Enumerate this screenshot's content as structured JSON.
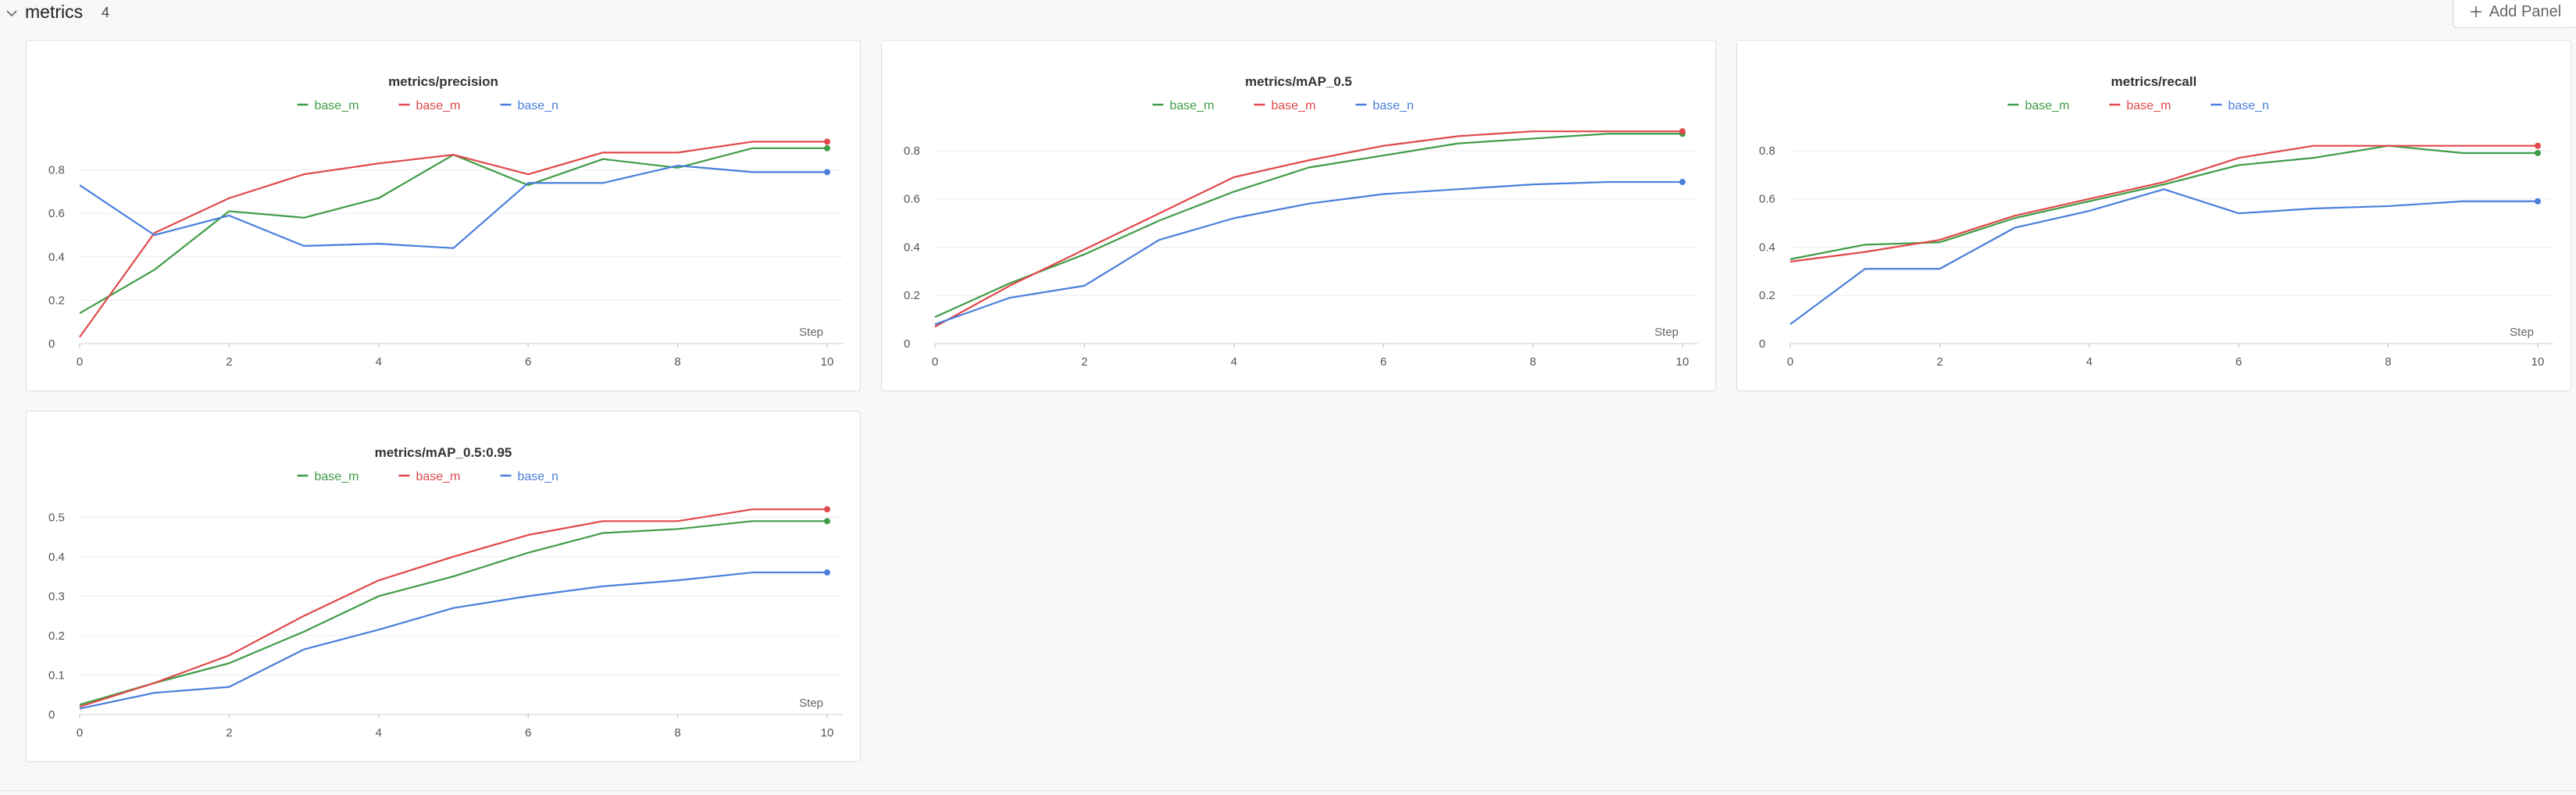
{
  "section": {
    "title": "metrics",
    "count": "4",
    "add_panel_label": "Add Panel"
  },
  "colors": {
    "base_m_green": "#3f9c46",
    "base_m_red": "#e0484a",
    "base_n": "#4a7fdb"
  },
  "icons": {
    "collapse": "chevron-down-icon",
    "add": "plus-icon"
  },
  "chart_data": [
    {
      "type": "line",
      "title": "metrics/precision",
      "xlabel": "Step",
      "xlim": [
        0,
        10
      ],
      "ylim": [
        0,
        1
      ],
      "yticks": [
        "0",
        "0.2",
        "0.4",
        "0.6",
        "0.8"
      ],
      "xticks": [
        "0",
        "2",
        "4",
        "6",
        "8",
        "10"
      ],
      "legend_position": "top-center",
      "grid": true,
      "x": [
        0,
        1,
        2,
        3,
        4,
        5,
        6,
        7,
        8,
        9,
        10
      ],
      "series": [
        {
          "name": "base_m",
          "color": "#3f9c46",
          "values": [
            0.14,
            0.34,
            0.61,
            0.58,
            0.67,
            0.87,
            0.73,
            0.85,
            0.81,
            0.9,
            0.9
          ]
        },
        {
          "name": "base_m",
          "color": "#e0484a",
          "values": [
            0.03,
            0.51,
            0.67,
            0.78,
            0.83,
            0.87,
            0.78,
            0.88,
            0.88,
            0.93,
            0.93
          ]
        },
        {
          "name": "base_n",
          "color": "#4a7fdb",
          "values": [
            0.73,
            0.5,
            0.59,
            0.45,
            0.46,
            0.44,
            0.74,
            0.74,
            0.82,
            0.79,
            0.79
          ]
        }
      ]
    },
    {
      "type": "line",
      "title": "metrics/mAP_0.5",
      "xlabel": "Step",
      "xlim": [
        0,
        10
      ],
      "ylim": [
        0,
        0.9
      ],
      "yticks": [
        "0",
        "0.2",
        "0.4",
        "0.6",
        "0.8"
      ],
      "xticks": [
        "0",
        "2",
        "4",
        "6",
        "8",
        "10"
      ],
      "legend_position": "top-center",
      "grid": true,
      "x": [
        0,
        1,
        2,
        3,
        4,
        5,
        6,
        7,
        8,
        9,
        10
      ],
      "series": [
        {
          "name": "base_m",
          "color": "#3f9c46",
          "values": [
            0.11,
            0.25,
            0.37,
            0.51,
            0.63,
            0.73,
            0.78,
            0.83,
            0.85,
            0.87,
            0.87
          ]
        },
        {
          "name": "base_m",
          "color": "#e0484a",
          "values": [
            0.07,
            0.24,
            0.39,
            0.54,
            0.69,
            0.76,
            0.82,
            0.86,
            0.88,
            0.88,
            0.88
          ]
        },
        {
          "name": "base_n",
          "color": "#4a7fdb",
          "values": [
            0.08,
            0.19,
            0.24,
            0.43,
            0.52,
            0.58,
            0.62,
            0.64,
            0.66,
            0.67,
            0.67
          ]
        }
      ]
    },
    {
      "type": "line",
      "title": "metrics/recall",
      "xlabel": "Step",
      "xlim": [
        0,
        10
      ],
      "ylim": [
        0,
        0.9
      ],
      "yticks": [
        "0",
        "0.2",
        "0.4",
        "0.6",
        "0.8"
      ],
      "xticks": [
        "0",
        "2",
        "4",
        "6",
        "8",
        "10"
      ],
      "legend_position": "top-center",
      "grid": true,
      "x": [
        0,
        1,
        2,
        3,
        4,
        5,
        6,
        7,
        8,
        9,
        10
      ],
      "series": [
        {
          "name": "base_m",
          "color": "#3f9c46",
          "values": [
            0.35,
            0.41,
            0.42,
            0.52,
            0.59,
            0.66,
            0.74,
            0.77,
            0.82,
            0.79,
            0.79
          ]
        },
        {
          "name": "base_m",
          "color": "#e0484a",
          "values": [
            0.34,
            0.38,
            0.43,
            0.53,
            0.6,
            0.67,
            0.77,
            0.82,
            0.82,
            0.82,
            0.82
          ]
        },
        {
          "name": "base_n",
          "color": "#4a7fdb",
          "values": [
            0.08,
            0.31,
            0.31,
            0.48,
            0.55,
            0.64,
            0.54,
            0.56,
            0.57,
            0.59,
            0.59
          ]
        }
      ]
    },
    {
      "type": "line",
      "title": "metrics/mAP_0.5:0.95",
      "xlabel": "Step",
      "xlim": [
        0,
        10
      ],
      "ylim": [
        0,
        0.55
      ],
      "yticks": [
        "0",
        "0.1",
        "0.2",
        "0.3",
        "0.4",
        "0.5"
      ],
      "xticks": [
        "0",
        "2",
        "4",
        "6",
        "8",
        "10"
      ],
      "legend_position": "top-center",
      "grid": true,
      "x": [
        0,
        1,
        2,
        3,
        4,
        5,
        6,
        7,
        8,
        9,
        10
      ],
      "series": [
        {
          "name": "base_m",
          "color": "#3f9c46",
          "values": [
            0.025,
            0.08,
            0.13,
            0.21,
            0.3,
            0.35,
            0.41,
            0.46,
            0.47,
            0.49,
            0.49
          ]
        },
        {
          "name": "base_m",
          "color": "#e0484a",
          "values": [
            0.02,
            0.08,
            0.15,
            0.25,
            0.34,
            0.4,
            0.455,
            0.49,
            0.49,
            0.52,
            0.52
          ]
        },
        {
          "name": "base_n",
          "color": "#4a7fdb",
          "values": [
            0.015,
            0.055,
            0.07,
            0.165,
            0.215,
            0.27,
            0.3,
            0.325,
            0.34,
            0.36,
            0.36
          ]
        }
      ]
    }
  ]
}
